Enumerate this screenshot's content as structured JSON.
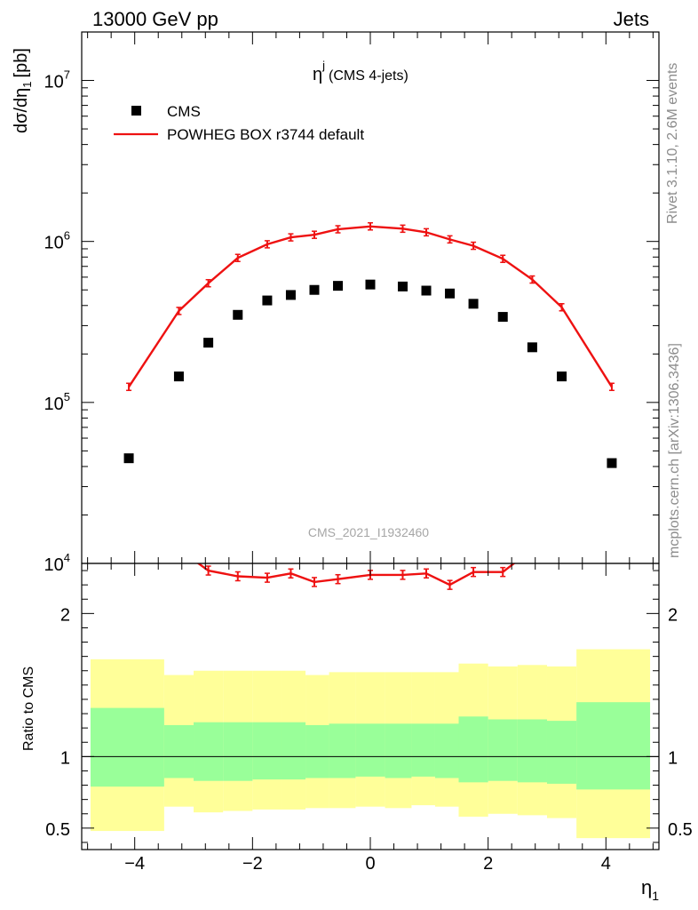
{
  "header": {
    "left": "13000 GeV pp",
    "right": "Jets"
  },
  "side": {
    "rivet": "Rivet 3.1.10,  2.6M events",
    "mcplots": "mcplots.cern.ch [arXiv:1306.3436]"
  },
  "watermark": "CMS_2021_I1932460",
  "chart_data": [
    {
      "type": "line",
      "title_main": "η",
      "title_sup": "j",
      "title_paren": "(CMS 4-jets)",
      "ylabel_main": "dσ/dη",
      "ylabel_sub": "1",
      "ylabel_unit": "[pb]",
      "yscale": "log",
      "ylim": [
        10000,
        20000000
      ],
      "xlim": [
        -4.9,
        4.9
      ],
      "yticks": [
        {
          "value": 10000,
          "base": "10",
          "exp": "4"
        },
        {
          "value": 100000,
          "base": "10",
          "exp": "5"
        },
        {
          "value": 1000000,
          "base": "10",
          "exp": "6"
        },
        {
          "value": 10000000,
          "base": "10",
          "exp": "7"
        }
      ],
      "legend": [
        "CMS",
        "POWHEG BOX r3744 default"
      ],
      "legend_position": "top-left",
      "series": [
        {
          "name": "CMS",
          "style": "markers",
          "color": "#000000",
          "x": [
            -4.1,
            -3.25,
            -2.75,
            -2.25,
            -1.75,
            -1.35,
            -0.95,
            -0.55,
            0.0,
            0.55,
            0.95,
            1.35,
            1.75,
            2.25,
            2.75,
            3.25,
            4.1
          ],
          "y": [
            45000,
            145000,
            235000,
            350000,
            430000,
            465000,
            500000,
            530000,
            540000,
            525000,
            495000,
            475000,
            410000,
            340000,
            220000,
            145000,
            42000
          ]
        },
        {
          "name": "POWHEG BOX r3744 default",
          "style": "line",
          "color": "#ee1111",
          "x": [
            -4.1,
            -3.25,
            -2.75,
            -2.25,
            -1.75,
            -1.35,
            -0.95,
            -0.55,
            0.0,
            0.55,
            0.95,
            1.35,
            1.75,
            2.25,
            2.75,
            3.25,
            4.1
          ],
          "y": [
            125000,
            370000,
            550000,
            790000,
            960000,
            1060000,
            1100000,
            1190000,
            1240000,
            1200000,
            1140000,
            1030000,
            940000,
            780000,
            580000,
            390000,
            125000
          ]
        }
      ]
    },
    {
      "type": "line",
      "ylabel": "Ratio to CMS",
      "xlabel_main": "η",
      "xlabel_sub": "1",
      "ylim": [
        0.35,
        2.35
      ],
      "xlim": [
        -4.9,
        4.9
      ],
      "xticks": [
        {
          "value": -4,
          "label": "−4"
        },
        {
          "value": -2,
          "label": "−2"
        },
        {
          "value": 0,
          "label": "0"
        },
        {
          "value": 2,
          "label": "2"
        },
        {
          "value": 4,
          "label": "4"
        }
      ],
      "yticks": [
        {
          "value": 0.5,
          "label": "0.5"
        },
        {
          "value": 1,
          "label": "1"
        },
        {
          "value": 2,
          "label": "2"
        }
      ],
      "reference_line": 1,
      "bands": {
        "yellow_color": "#ffff99",
        "green_color": "#99ff99",
        "bins": [
          {
            "x0": -4.75,
            "x1": -3.5,
            "y_lo": 0.48,
            "y_hi": 1.68,
            "g_lo": 0.79,
            "g_hi": 1.34
          },
          {
            "x0": -3.5,
            "x1": -3.0,
            "y_lo": 0.65,
            "y_hi": 1.57,
            "g_lo": 0.85,
            "g_hi": 1.22
          },
          {
            "x0": -3.0,
            "x1": -2.5,
            "y_lo": 0.61,
            "y_hi": 1.6,
            "g_lo": 0.83,
            "g_hi": 1.24
          },
          {
            "x0": -2.5,
            "x1": -2.0,
            "y_lo": 0.62,
            "y_hi": 1.6,
            "g_lo": 0.83,
            "g_hi": 1.24
          },
          {
            "x0": -2.0,
            "x1": -1.5,
            "y_lo": 0.63,
            "y_hi": 1.6,
            "g_lo": 0.84,
            "g_hi": 1.24
          },
          {
            "x0": -1.5,
            "x1": -1.1,
            "y_lo": 0.63,
            "y_hi": 1.6,
            "g_lo": 0.84,
            "g_hi": 1.24
          },
          {
            "x0": -1.1,
            "x1": -0.7,
            "y_lo": 0.64,
            "y_hi": 1.57,
            "g_lo": 0.85,
            "g_hi": 1.22
          },
          {
            "x0": -0.7,
            "x1": -0.25,
            "y_lo": 0.64,
            "y_hi": 1.59,
            "g_lo": 0.85,
            "g_hi": 1.23
          },
          {
            "x0": -0.25,
            "x1": 0.25,
            "y_lo": 0.65,
            "y_hi": 1.59,
            "g_lo": 0.86,
            "g_hi": 1.23
          },
          {
            "x0": 0.25,
            "x1": 0.7,
            "y_lo": 0.64,
            "y_hi": 1.59,
            "g_lo": 0.85,
            "g_hi": 1.23
          },
          {
            "x0": 0.7,
            "x1": 1.1,
            "y_lo": 0.66,
            "y_hi": 1.59,
            "g_lo": 0.86,
            "g_hi": 1.23
          },
          {
            "x0": 1.1,
            "x1": 1.5,
            "y_lo": 0.65,
            "y_hi": 1.59,
            "g_lo": 0.85,
            "g_hi": 1.23
          },
          {
            "x0": 1.5,
            "x1": 2.0,
            "y_lo": 0.58,
            "y_hi": 1.65,
            "g_lo": 0.82,
            "g_hi": 1.28
          },
          {
            "x0": 2.0,
            "x1": 2.5,
            "y_lo": 0.6,
            "y_hi": 1.63,
            "g_lo": 0.83,
            "g_hi": 1.26
          },
          {
            "x0": 2.5,
            "x1": 3.0,
            "y_lo": 0.59,
            "y_hi": 1.64,
            "g_lo": 0.82,
            "g_hi": 1.26
          },
          {
            "x0": 3.0,
            "x1": 3.5,
            "y_lo": 0.57,
            "y_hi": 1.63,
            "g_lo": 0.81,
            "g_hi": 1.25
          },
          {
            "x0": 3.5,
            "x1": 4.75,
            "y_lo": 0.43,
            "y_hi": 1.75,
            "g_lo": 0.77,
            "g_hi": 1.38
          }
        ]
      },
      "series": [
        {
          "name": "POWHEG BOX r3744 default",
          "color": "#ee1111",
          "x": [
            -3.25,
            -2.75,
            -2.25,
            -1.75,
            -1.35,
            -0.95,
            -0.55,
            0.0,
            0.55,
            0.95,
            1.35,
            1.75,
            2.25,
            2.75
          ],
          "y": [
            2.45,
            2.3,
            2.26,
            2.25,
            2.28,
            2.22,
            2.24,
            2.27,
            2.27,
            2.28,
            2.2,
            2.29,
            2.29,
            2.45
          ]
        }
      ]
    }
  ]
}
